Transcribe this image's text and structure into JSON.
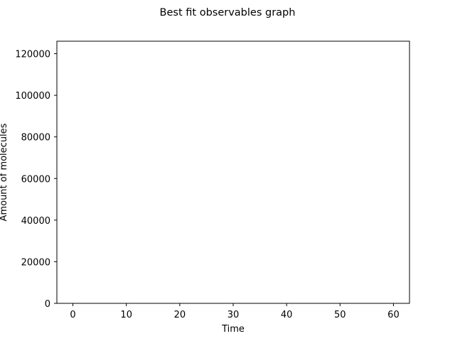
{
  "chart_data": {
    "type": "line",
    "title": "Best fit observables graph",
    "xlabel": "Time",
    "ylabel": "Amount of molecules",
    "xlim": [
      -3,
      63
    ],
    "ylim": [
      0,
      126000
    ],
    "x_ticks": [
      0,
      10,
      20,
      30,
      40,
      50,
      60
    ],
    "x_tick_labels": [
      "0",
      "10",
      "20",
      "30",
      "40",
      "50",
      "60"
    ],
    "y_ticks": [
      0,
      20000,
      40000,
      60000,
      80000,
      100000,
      120000
    ],
    "y_tick_labels": [
      "0",
      "20000",
      "40000",
      "60000",
      "80000",
      "100000",
      "120000"
    ],
    "grid": false,
    "series": [],
    "colors": {
      "axis": "#000000",
      "background": "#ffffff"
    }
  }
}
